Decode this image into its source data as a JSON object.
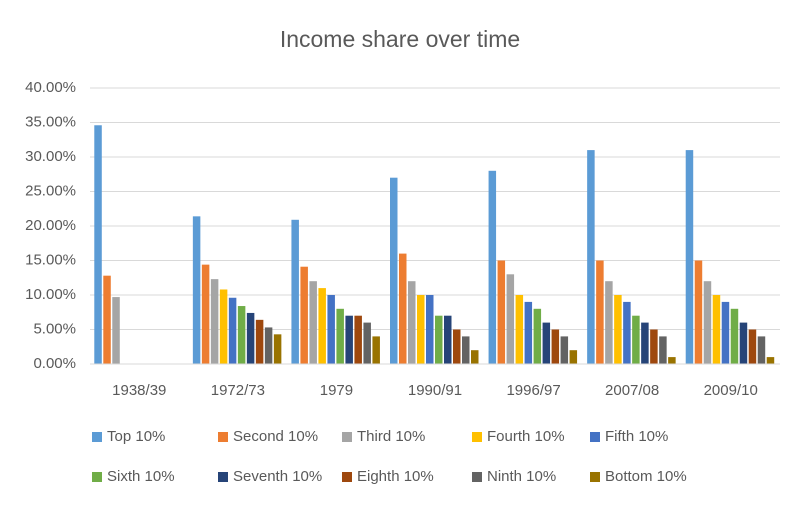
{
  "chart_data": {
    "type": "bar",
    "title": "Income share over time",
    "categories": [
      "1938/39",
      "1972/73",
      "1979",
      "1990/91",
      "1996/97",
      "2007/08",
      "2009/10"
    ],
    "series": [
      {
        "name": "Top 10%",
        "color": "#5b9bd5",
        "values": [
          34.6,
          21.4,
          20.9,
          27.0,
          28.0,
          31.0,
          31.0
        ]
      },
      {
        "name": "Second 10%",
        "color": "#ed7d31",
        "values": [
          12.8,
          14.4,
          14.1,
          16.0,
          15.0,
          15.0,
          15.0
        ]
      },
      {
        "name": "Third 10%",
        "color": "#a5a5a5",
        "values": [
          9.7,
          12.3,
          12.0,
          12.0,
          13.0,
          12.0,
          12.0
        ]
      },
      {
        "name": "Fourth 10%",
        "color": "#ffc000",
        "values": [
          null,
          10.8,
          11.0,
          10.0,
          10.0,
          10.0,
          10.0
        ]
      },
      {
        "name": "Fifth 10%",
        "color": "#4472c4",
        "values": [
          null,
          9.6,
          10.0,
          10.0,
          9.0,
          9.0,
          9.0
        ]
      },
      {
        "name": "Sixth 10%",
        "color": "#70ad47",
        "values": [
          null,
          8.4,
          8.0,
          7.0,
          8.0,
          7.0,
          8.0
        ]
      },
      {
        "name": "Seventh 10%",
        "color": "#264478",
        "values": [
          null,
          7.4,
          7.0,
          7.0,
          6.0,
          6.0,
          6.0
        ]
      },
      {
        "name": "Eighth 10%",
        "color": "#9e480e",
        "values": [
          null,
          6.4,
          7.0,
          5.0,
          5.0,
          5.0,
          5.0
        ]
      },
      {
        "name": "Ninth 10%",
        "color": "#636363",
        "values": [
          null,
          5.3,
          6.0,
          4.0,
          4.0,
          4.0,
          4.0
        ]
      },
      {
        "name": "Bottom 10%",
        "color": "#997300",
        "values": [
          null,
          4.3,
          4.0,
          2.0,
          2.0,
          1.0,
          1.0
        ]
      }
    ],
    "ylim": [
      0,
      40
    ],
    "yticks": [
      {
        "value": 0,
        "label": "0.00%"
      },
      {
        "value": 5,
        "label": "5.00%"
      },
      {
        "value": 10,
        "label": "10.00%"
      },
      {
        "value": 15,
        "label": "15.00%"
      },
      {
        "value": 20,
        "label": "20.00%"
      },
      {
        "value": 25,
        "label": "25.00%"
      },
      {
        "value": 30,
        "label": "30.00%"
      },
      {
        "value": 35,
        "label": "35.00%"
      },
      {
        "value": 40,
        "label": "40.00%"
      }
    ],
    "grid": true,
    "legend": "bottom"
  }
}
